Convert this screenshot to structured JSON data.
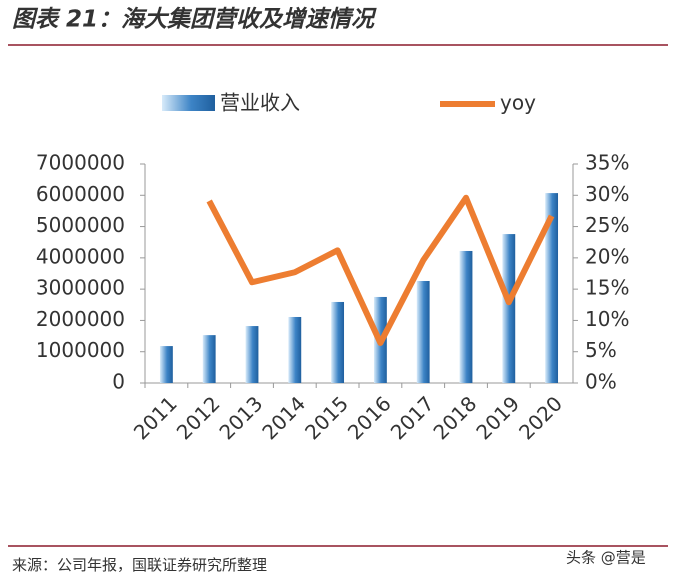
{
  "header": {
    "title": "图表 21：海大集团营收及增速情况"
  },
  "chart_data": {
    "type": "bar",
    "categories": [
      "2011",
      "2012",
      "2013",
      "2014",
      "2015",
      "2016",
      "2017",
      "2018",
      "2019",
      "2020"
    ],
    "series": [
      {
        "name": "营业收入",
        "type": "bar",
        "color": "#3d84c6",
        "values": [
          1180000,
          1530000,
          1820000,
          2110000,
          2590000,
          2750000,
          3260000,
          4220000,
          4760000,
          6070000
        ]
      },
      {
        "name": "yoy",
        "type": "line",
        "axis": "y2",
        "color": "#ed7d31",
        "values": [
          null,
          29.1,
          16.1,
          17.7,
          21.2,
          6.4,
          19.6,
          29.6,
          12.9,
          26.7
        ]
      }
    ],
    "ylim": [
      0,
      7000000
    ],
    "yticks": [
      0,
      1000000,
      2000000,
      3000000,
      4000000,
      5000000,
      6000000,
      7000000
    ],
    "y2lim": [
      0,
      35
    ],
    "y2ticks": [
      {
        "value": 0,
        "label": "0%"
      },
      {
        "value": 5,
        "label": "5%"
      },
      {
        "value": 10,
        "label": "10%"
      },
      {
        "value": 15,
        "label": "15%"
      },
      {
        "value": 20,
        "label": "20%"
      },
      {
        "value": 25,
        "label": "25%"
      },
      {
        "value": 30,
        "label": "30%"
      },
      {
        "value": 35,
        "label": "35%"
      }
    ]
  },
  "footer": {
    "source": "来源：公司年报，国联证券研究所整理",
    "watermark": "头条 @营是"
  }
}
